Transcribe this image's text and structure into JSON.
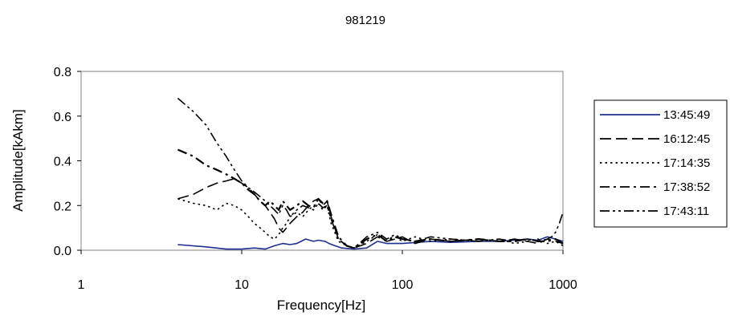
{
  "chart_data": {
    "type": "line",
    "title": "981219",
    "xlabel": "Frequency[Hz]",
    "ylabel": "Amplitude[kAkm]",
    "xscale": "log",
    "xlim": [
      1,
      1000
    ],
    "ylim": [
      0,
      0.8
    ],
    "xticks": [
      1,
      10,
      100,
      1000
    ],
    "xtick_labels": [
      "1",
      "10",
      "100",
      "1000"
    ],
    "yticks": [
      0,
      0.2,
      0.4,
      0.6,
      0.8
    ],
    "ytick_labels": [
      "0.0",
      "0.2",
      "0.4",
      "0.6",
      "0.8"
    ],
    "grid": false,
    "legend_position": "right",
    "series": [
      {
        "name": "13:45:49",
        "color": "#1f2f8f",
        "dash": "solid",
        "x": [
          4,
          6,
          8,
          10,
          12,
          14,
          16,
          18,
          20,
          22,
          25,
          28,
          30,
          33,
          35,
          38,
          42,
          50,
          60,
          70,
          80,
          100,
          150,
          200,
          300,
          400,
          500,
          600,
          700,
          800,
          900,
          1000
        ],
        "y": [
          0.025,
          0.015,
          0.005,
          0.005,
          0.01,
          0.005,
          0.02,
          0.03,
          0.025,
          0.03,
          0.05,
          0.04,
          0.045,
          0.04,
          0.03,
          0.02,
          0.01,
          0.005,
          0.01,
          0.04,
          0.03,
          0.03,
          0.04,
          0.035,
          0.04,
          0.04,
          0.045,
          0.05,
          0.045,
          0.06,
          0.05,
          0.04
        ]
      },
      {
        "name": "16:12:45",
        "color": "#000000",
        "dash": "long-dash",
        "x": [
          4,
          5,
          6,
          7,
          8,
          9,
          10,
          11,
          12,
          13,
          14,
          15,
          16,
          17,
          18,
          19,
          20,
          22,
          24,
          26,
          28,
          30,
          32,
          34,
          36,
          40,
          45,
          50,
          60,
          70,
          80,
          90,
          100,
          120,
          150,
          200,
          300,
          400,
          500,
          600,
          700,
          800,
          900,
          1000
        ],
        "y": [
          0.23,
          0.25,
          0.28,
          0.3,
          0.31,
          0.32,
          0.3,
          0.28,
          0.25,
          0.22,
          0.2,
          0.17,
          0.14,
          0.1,
          0.08,
          0.1,
          0.12,
          0.15,
          0.17,
          0.2,
          0.22,
          0.23,
          0.2,
          0.22,
          0.15,
          0.05,
          0.02,
          0.01,
          0.03,
          0.06,
          0.04,
          0.05,
          0.06,
          0.03,
          0.05,
          0.04,
          0.05,
          0.04,
          0.05,
          0.04,
          0.03,
          0.05,
          0.04,
          0.03
        ]
      },
      {
        "name": "17:14:35",
        "color": "#000000",
        "dash": "dotted",
        "x": [
          4,
          5,
          6,
          7,
          8,
          9,
          10,
          11,
          12,
          13,
          14,
          15,
          16,
          17,
          18,
          19,
          20,
          22,
          24,
          26,
          28,
          30,
          32,
          34,
          36,
          40,
          45,
          50,
          60,
          70,
          80,
          90,
          100,
          120,
          150,
          200,
          300,
          400,
          500,
          600,
          700,
          800,
          900,
          1000
        ],
        "y": [
          0.23,
          0.21,
          0.2,
          0.18,
          0.21,
          0.2,
          0.18,
          0.15,
          0.12,
          0.1,
          0.08,
          0.06,
          0.05,
          0.07,
          0.1,
          0.12,
          0.15,
          0.17,
          0.15,
          0.18,
          0.2,
          0.21,
          0.18,
          0.2,
          0.12,
          0.04,
          0.02,
          0.01,
          0.04,
          0.07,
          0.05,
          0.06,
          0.04,
          0.06,
          0.04,
          0.05,
          0.04,
          0.05,
          0.03,
          0.04,
          0.05,
          0.03,
          0.04,
          0.02
        ]
      },
      {
        "name": "17:38:52",
        "color": "#000000",
        "dash": "dash-dot",
        "x": [
          4,
          5,
          6,
          7,
          8,
          9,
          10,
          11,
          12,
          13,
          14,
          15,
          16,
          17,
          18,
          19,
          20,
          22,
          24,
          26,
          28,
          30,
          32,
          34,
          36,
          40,
          45,
          50,
          60,
          70,
          80,
          90,
          100,
          120,
          150,
          200,
          300,
          400,
          500,
          600,
          700,
          800,
          900,
          1000
        ],
        "y": [
          0.45,
          0.42,
          0.38,
          0.36,
          0.34,
          0.32,
          0.3,
          0.27,
          0.25,
          0.22,
          0.2,
          0.22,
          0.2,
          0.18,
          0.22,
          0.2,
          0.18,
          0.2,
          0.22,
          0.2,
          0.19,
          0.23,
          0.21,
          0.22,
          0.16,
          0.06,
          0.02,
          0.01,
          0.05,
          0.07,
          0.04,
          0.06,
          0.05,
          0.04,
          0.05,
          0.04,
          0.05,
          0.04,
          0.04,
          0.05,
          0.04,
          0.04,
          0.05,
          0.03
        ]
      },
      {
        "name": "17:43:11",
        "color": "#000000",
        "dash": "dash-dot-dot",
        "x": [
          4,
          5,
          6,
          7,
          8,
          9,
          10,
          11,
          12,
          13,
          14,
          15,
          16,
          17,
          18,
          19,
          20,
          22,
          24,
          26,
          28,
          30,
          32,
          34,
          36,
          40,
          45,
          50,
          60,
          70,
          80,
          90,
          100,
          120,
          150,
          200,
          300,
          400,
          500,
          600,
          700,
          800,
          850,
          900,
          950,
          1000
        ],
        "y": [
          0.68,
          0.62,
          0.56,
          0.48,
          0.42,
          0.36,
          0.31,
          0.28,
          0.26,
          0.24,
          0.22,
          0.2,
          0.18,
          0.16,
          0.2,
          0.18,
          0.15,
          0.18,
          0.2,
          0.19,
          0.18,
          0.21,
          0.19,
          0.2,
          0.14,
          0.05,
          0.02,
          0.01,
          0.06,
          0.08,
          0.05,
          0.07,
          0.05,
          0.04,
          0.06,
          0.05,
          0.04,
          0.05,
          0.04,
          0.05,
          0.04,
          0.05,
          0.06,
          0.08,
          0.12,
          0.17
        ]
      }
    ]
  }
}
